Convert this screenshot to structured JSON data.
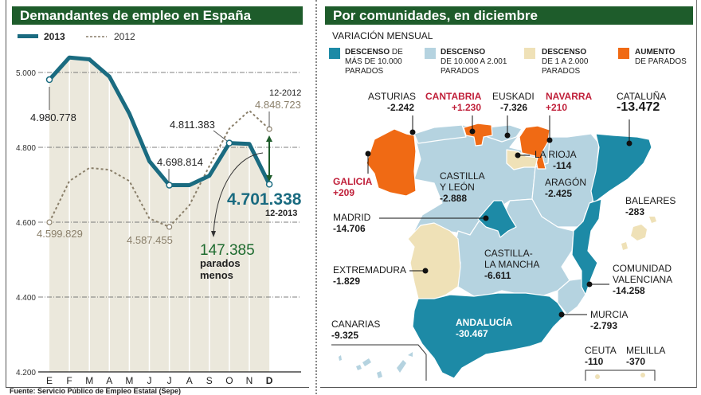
{
  "left_panel": {
    "title": "Demandantes de empleo en España",
    "source": "Fuente: Servicio Público de Empleo Estatal (Sepe)"
  },
  "chart_data": {
    "type": "line",
    "title": "Demandantes de empleo en España",
    "xlabel": "",
    "ylabel": "",
    "unit": "miles",
    "ylim": [
      4200,
      5070
    ],
    "yticks": [
      4200,
      4400,
      4600,
      4800,
      5000
    ],
    "ytick_labels": [
      "4.200",
      "4.400",
      "4.600",
      "4.800",
      "5.000"
    ],
    "categories": [
      "E",
      "F",
      "M",
      "A",
      "M",
      "J",
      "J",
      "A",
      "S",
      "O",
      "N",
      "D"
    ],
    "grid": true,
    "legend": "top-left",
    "series": [
      {
        "name": "2013",
        "style": "solid",
        "color": "#1a6b80",
        "values": [
          4980.778,
          5040,
          5035,
          4989,
          4890,
          4763,
          4698.814,
          4699,
          4724,
          4811.383,
          4809,
          4701.338
        ]
      },
      {
        "name": "2012",
        "style": "dashed",
        "color": "#8a7f6a",
        "values": [
          4599.829,
          4710,
          4745,
          4740,
          4710,
          4610,
          4587.455,
          4645,
          4750,
          4850,
          4898,
          4848.723
        ]
      }
    ],
    "annotations": [
      {
        "text": "4.980.778",
        "series": "2013",
        "index": 0
      },
      {
        "text": "4.698.814",
        "series": "2013",
        "index": 6
      },
      {
        "text": "4.811.383",
        "series": "2013",
        "index": 9
      },
      {
        "text": "4.701.338",
        "series": "2013",
        "index": 11,
        "sub": "12-2013"
      },
      {
        "text": "4.599.829",
        "series": "2012",
        "index": 0
      },
      {
        "text": "4.587.455",
        "series": "2012",
        "index": 6
      },
      {
        "text": "4.848.723",
        "series": "2012",
        "index": 11,
        "sub": "12-2012"
      }
    ],
    "difference": {
      "value": "147.385",
      "line1": "parados",
      "line2": "menos"
    },
    "legend_labels": {
      "s2013": "2013",
      "s2012": "2012"
    },
    "labels": {
      "e0": "4.980.778",
      "e6": "4.698.814",
      "e9": "4.811.383",
      "e11": "4.701.338",
      "e11sub": "12-2013",
      "p0": "4.599.829",
      "p6": "4.587.455",
      "p11": "4.848.723",
      "p11sub": "12-2012"
    }
  },
  "right_panel": {
    "title": "Por comunidades, en diciembre",
    "subtitle": "VARIACIÓN MENSUAL",
    "legend": [
      {
        "bold": "DESCENSO",
        "rest1": " DE",
        "line2": "MÁS DE 10.000",
        "line3": "PARADOS",
        "color": "#1d8aa6"
      },
      {
        "bold": "DESCENSO",
        "rest1": "",
        "line2": "DE 10.000 A 2.001",
        "line3": "PARADOS",
        "color": "#b5d3e0"
      },
      {
        "bold": "DESCENSO",
        "rest1": "",
        "line2": "DE 1 A 2.000",
        "line3": "PARADOS",
        "color": "#efe1b7"
      },
      {
        "bold": "AUMENTO",
        "rest1": "",
        "line2": "DE PARADOS",
        "line3": "",
        "color": "#f06a14"
      }
    ],
    "regions": {
      "asturias": {
        "name": "ASTURIAS",
        "value": "-2.242"
      },
      "cantabria": {
        "name": "CANTABRIA",
        "value": "+1.230"
      },
      "euskadi": {
        "name": "EUSKADI",
        "value": "-7.326"
      },
      "navarra": {
        "name": "NAVARRA",
        "value": "+210"
      },
      "cataluna": {
        "name": "CATALUÑA",
        "value": "-13.472"
      },
      "galicia": {
        "name": "GALICIA",
        "value": "+209"
      },
      "castilla_leon": {
        "name1": "CASTILLA",
        "name2": "Y LEÓN",
        "value": "-2.888"
      },
      "la_rioja": {
        "name": "LA RIOJA",
        "value": "-114"
      },
      "aragon": {
        "name": "ARAGÓN",
        "value": "-2.425"
      },
      "baleares": {
        "name": "BALEARES",
        "value": "-283"
      },
      "madrid": {
        "name": "MADRID",
        "value": "-14.706"
      },
      "castilla_mancha": {
        "name1": "CASTILLA-",
        "name2": "LA MANCHA",
        "value": "-6.611"
      },
      "extremadura": {
        "name": "EXTREMADURA",
        "value": "-1.829"
      },
      "valenciana": {
        "name1": "COMUNIDAD",
        "name2": "VALENCIANA",
        "value": "-14.258"
      },
      "murcia": {
        "name": "MURCIA",
        "value": "-2.793"
      },
      "canarias": {
        "name": "CANARIAS",
        "value": "-9.325"
      },
      "andalucia": {
        "name": "ANDALUCÍA",
        "value": "-30.467"
      },
      "ceuta": {
        "name": "CEUTA",
        "value": "-110"
      },
      "melilla": {
        "name": "MELILLA",
        "value": "-370"
      }
    }
  }
}
